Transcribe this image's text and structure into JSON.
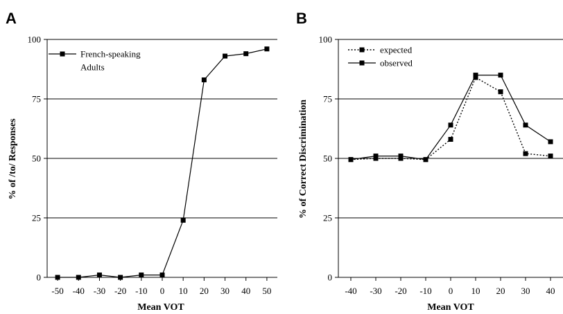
{
  "chart_data": [
    {
      "panel_label": "A",
      "type": "line",
      "xlabel": "Mean VOT",
      "ylabel": "% of /to/ Responses",
      "x": [
        -50,
        -40,
        -30,
        -20,
        -10,
        0,
        10,
        20,
        30,
        40,
        50
      ],
      "xlim": [
        -55,
        55
      ],
      "ylim": [
        0,
        100
      ],
      "yticks": [
        0,
        25,
        50,
        75,
        100
      ],
      "grid": "horizontal",
      "legend": "top-left",
      "series": [
        {
          "name": "French-speaking Adults",
          "style": "solid",
          "marker": "square",
          "color": "#000000",
          "values": [
            0,
            0,
            1,
            0,
            1,
            1,
            24,
            83,
            93,
            94,
            96
          ]
        }
      ]
    },
    {
      "panel_label": "B",
      "type": "line",
      "xlabel": "Mean VOT",
      "ylabel": "% of Correct Discrimination",
      "x": [
        -40,
        -30,
        -20,
        -10,
        0,
        10,
        20,
        30,
        40
      ],
      "xlim": [
        -45,
        45
      ],
      "ylim": [
        0,
        100
      ],
      "yticks": [
        0,
        25,
        50,
        75,
        100
      ],
      "grid": "horizontal",
      "legend": "top-left",
      "series": [
        {
          "name": "expected",
          "style": "dotted",
          "marker": "square",
          "color": "#000000",
          "values": [
            49.5,
            50,
            50,
            49.5,
            58,
            84,
            78,
            52,
            51
          ]
        },
        {
          "name": "observed",
          "style": "solid",
          "marker": "square",
          "color": "#000000",
          "values": [
            49.5,
            51,
            51,
            49.5,
            64,
            85,
            85,
            64,
            57
          ]
        }
      ]
    }
  ]
}
